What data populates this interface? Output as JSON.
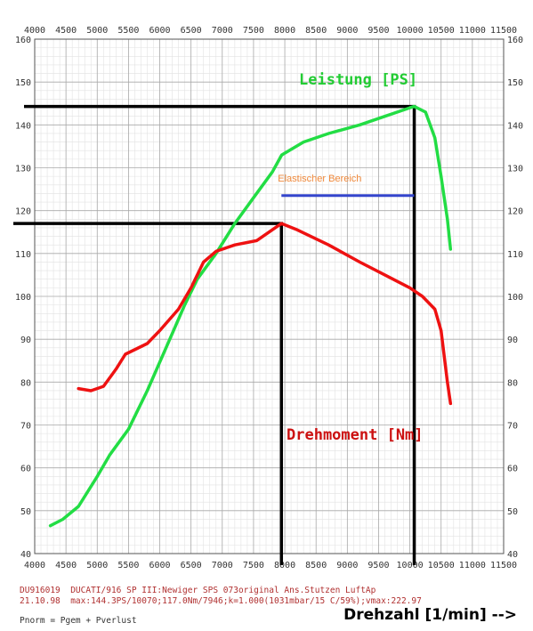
{
  "chart_data": {
    "type": "line",
    "x_ticks": [
      4000,
      4500,
      5000,
      5500,
      6000,
      6500,
      7000,
      7500,
      8000,
      8500,
      9000,
      9500,
      10000,
      10500,
      11000,
      11500
    ],
    "y_ticks": [
      40,
      50,
      60,
      70,
      80,
      90,
      100,
      110,
      120,
      130,
      140,
      150,
      160
    ],
    "xlim": [
      4000,
      11500
    ],
    "ylim": [
      40,
      160
    ],
    "grid": true,
    "xlabel": "Drehzahl [1/min] -->",
    "series": [
      {
        "name": "Leistung [PS]",
        "color": "#22dd44",
        "points": [
          [
            4250,
            46.5
          ],
          [
            4450,
            48
          ],
          [
            4700,
            51
          ],
          [
            5000,
            58
          ],
          [
            5200,
            63
          ],
          [
            5500,
            69
          ],
          [
            5800,
            78
          ],
          [
            6100,
            88
          ],
          [
            6400,
            98
          ],
          [
            6600,
            104
          ],
          [
            6900,
            110
          ],
          [
            7200,
            117
          ],
          [
            7500,
            123
          ],
          [
            7800,
            129
          ],
          [
            7950,
            133
          ],
          [
            8300,
            136
          ],
          [
            8700,
            138
          ],
          [
            9200,
            140
          ],
          [
            9600,
            142
          ],
          [
            10000,
            144
          ],
          [
            10070,
            144.3
          ],
          [
            10250,
            143
          ],
          [
            10400,
            137
          ],
          [
            10500,
            128
          ],
          [
            10600,
            118
          ],
          [
            10650,
            111
          ]
        ]
      },
      {
        "name": "Drehmoment [Nm]",
        "color": "#ee1111",
        "points": [
          [
            4700,
            78.5
          ],
          [
            4900,
            78
          ],
          [
            5100,
            79
          ],
          [
            5300,
            83
          ],
          [
            5450,
            86.5
          ],
          [
            5800,
            89
          ],
          [
            6000,
            92
          ],
          [
            6300,
            97
          ],
          [
            6500,
            102
          ],
          [
            6700,
            108
          ],
          [
            6900,
            110.5
          ],
          [
            7200,
            112
          ],
          [
            7550,
            113
          ],
          [
            7946,
            117
          ],
          [
            8200,
            115.5
          ],
          [
            8700,
            112
          ],
          [
            9200,
            108
          ],
          [
            9600,
            105
          ],
          [
            10000,
            102
          ],
          [
            10200,
            100
          ],
          [
            10400,
            97
          ],
          [
            10500,
            92
          ],
          [
            10600,
            80
          ],
          [
            10650,
            75
          ]
        ]
      }
    ],
    "reference_lines": {
      "power_peak": {
        "x": 10070,
        "y": 144.3,
        "color": "#000000"
      },
      "torque_peak": {
        "x": 7946,
        "y": 117,
        "color": "#000000"
      }
    },
    "annotation": {
      "text": "Elastischer Bereich",
      "x_start": 7946,
      "x_end": 10070,
      "y": 123.5,
      "color": "#3344cc",
      "text_color": "#f08a3c"
    }
  },
  "footer": {
    "line1": "DU916019  DUCATI/916 SP III:Newiger SPS 073original Ans.Stutzen LuftAp",
    "line2": "21.10.98  max:144.3PS/10070;117.0Nm/7946;k=1.000(1031mbar/15 C/59%);vmax:222.97",
    "line3": "Pnorm = Pgem + Pverlust",
    "x_axis_title": "Drehzahl [1/min] -->"
  }
}
